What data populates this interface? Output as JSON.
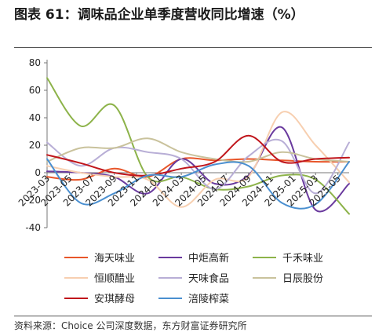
{
  "header": {
    "title": "图表 61：调味品企业单季度营收同比增速（%）"
  },
  "footer": {
    "source": "资料来源：Choice 公司深度数据，东方财富证券研究所"
  },
  "chart_data": {
    "type": "line",
    "title": "图表 61：调味品企业单季度营收同比增速（%）",
    "xlabel": "",
    "ylabel": "",
    "ylim": [
      -40,
      80
    ],
    "yticks": [
      -40,
      -20,
      0,
      20,
      40,
      60,
      80
    ],
    "xticks": [
      "2023-03",
      "2023-05",
      "2023-07",
      "2023-09",
      "2023-11",
      "2024-01",
      "2024-03",
      "2024-05",
      "2024-07",
      "2024-09",
      "2024-11",
      "2025-01",
      "2025-03",
      "2025-05"
    ],
    "x": [
      "2023-03",
      "2023-06",
      "2023-09",
      "2023-12",
      "2024-03",
      "2024-06",
      "2024-09",
      "2024-12",
      "2025-03",
      "2025-06"
    ],
    "grid": false,
    "legend_position": "bottom",
    "series": [
      {
        "name": "海天味业",
        "color": "#e8562a",
        "values": [
          -3,
          -5,
          3,
          -3,
          10,
          9,
          10,
          9,
          8,
          8
        ]
      },
      {
        "name": "中炬高新",
        "color": "#6a3a9e",
        "values": [
          1,
          0,
          -3,
          -15,
          10,
          -8,
          -2,
          33,
          -27,
          -8
        ]
      },
      {
        "name": "千禾味业",
        "color": "#8db34a",
        "values": [
          69,
          34,
          49,
          -3,
          -3,
          -12,
          -10,
          -2,
          -5,
          -30
        ]
      },
      {
        "name": "恒顺醋业",
        "color": "#f7cfb0",
        "values": [
          5,
          0,
          -3,
          -5,
          -25,
          -5,
          -3,
          44,
          20,
          -7
        ]
      },
      {
        "name": "天味食品",
        "color": "#b8aed6",
        "values": [
          22,
          5,
          18,
          15,
          10,
          -12,
          12,
          23,
          -15,
          22
        ]
      },
      {
        "name": "日辰股份",
        "color": "#c9c29c",
        "values": [
          8,
          18,
          18,
          25,
          15,
          10,
          8,
          15,
          10,
          8
        ]
      },
      {
        "name": "安琪酵母",
        "color": "#c0151b",
        "values": [
          13,
          7,
          0,
          -2,
          3,
          8,
          27,
          8,
          10,
          11
        ]
      },
      {
        "name": "涪陵榨菜",
        "color": "#4a8fd0",
        "values": [
          10,
          -22,
          -15,
          -2,
          -3,
          6,
          5,
          -22,
          -23,
          8
        ]
      }
    ]
  }
}
